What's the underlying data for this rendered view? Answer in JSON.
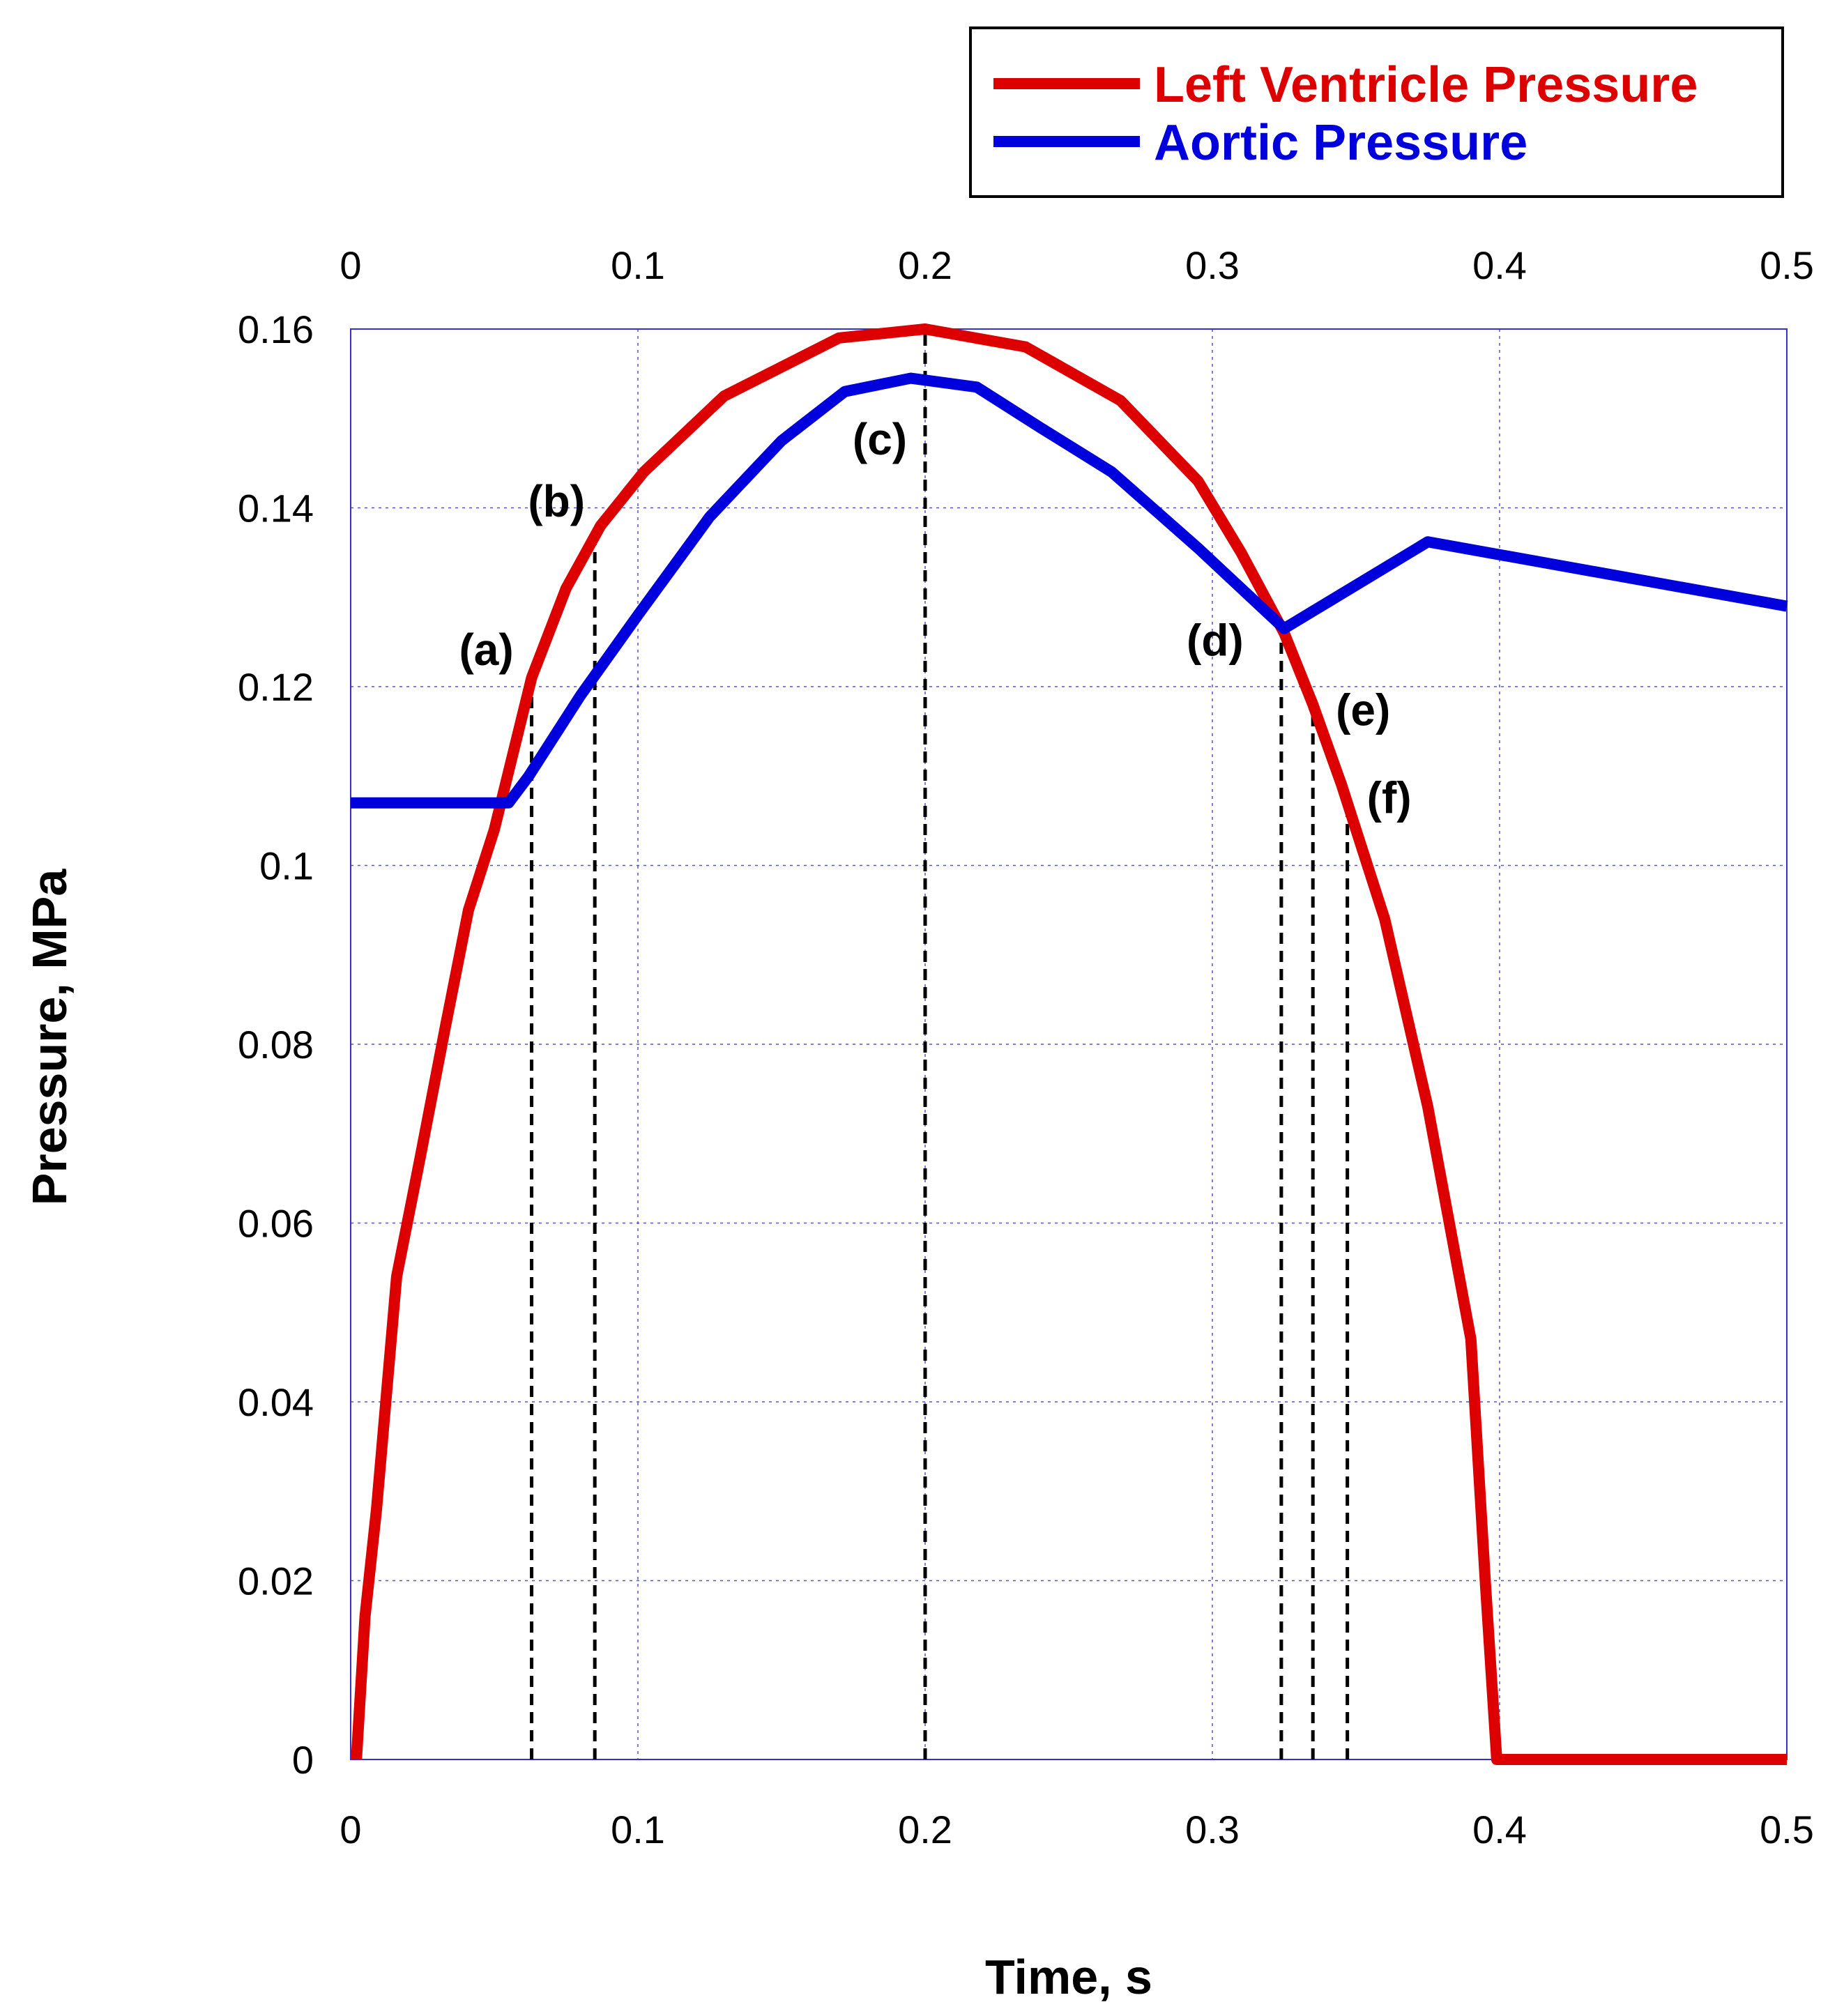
{
  "chart_data": {
    "type": "line",
    "xlabel": "Time, s",
    "ylabel": "Pressure, MPa",
    "xlim": [
      0,
      0.5
    ],
    "ylim": [
      0,
      0.16
    ],
    "x_ticks": [
      "0",
      "0.1",
      "0.2",
      "0.3",
      "0.4",
      "0.5"
    ],
    "y_ticks": [
      "0",
      "0.02",
      "0.04",
      "0.06",
      "0.08",
      "0.1",
      "0.12",
      "0.14",
      "0.16"
    ],
    "x_tick_values": [
      0,
      0.1,
      0.2,
      0.3,
      0.4,
      0.5
    ],
    "y_tick_values": [
      0,
      0.02,
      0.04,
      0.06,
      0.08,
      0.1,
      0.12,
      0.14,
      0.16
    ],
    "grid": true,
    "legend_position": "top-right",
    "series": [
      {
        "name": "Left Ventricle Pressure",
        "color": "#dd0000",
        "x": [
          0.002,
          0.005,
          0.009,
          0.016,
          0.024,
          0.033,
          0.041,
          0.05,
          0.063,
          0.075,
          0.087,
          0.102,
          0.13,
          0.17,
          0.2,
          0.235,
          0.268,
          0.295,
          0.31,
          0.325,
          0.335,
          0.345,
          0.36,
          0.375,
          0.39,
          0.395,
          0.399,
          0.5
        ],
        "y": [
          0.0,
          0.016,
          0.028,
          0.054,
          0.067,
          0.082,
          0.095,
          0.104,
          0.121,
          0.131,
          0.138,
          0.144,
          0.1525,
          0.159,
          0.16,
          0.158,
          0.152,
          0.143,
          0.135,
          0.126,
          0.118,
          0.109,
          0.094,
          0.073,
          0.047,
          0.02,
          0.0,
          0.0
        ]
      },
      {
        "name": "Aortic Pressure",
        "color": "#0000dd",
        "x": [
          0.0,
          0.055,
          0.062,
          0.08,
          0.1,
          0.125,
          0.15,
          0.172,
          0.195,
          0.218,
          0.24,
          0.265,
          0.295,
          0.325,
          0.375,
          0.5
        ],
        "y": [
          0.107,
          0.107,
          0.11,
          0.119,
          0.128,
          0.139,
          0.1475,
          0.153,
          0.1545,
          0.1535,
          0.149,
          0.144,
          0.1355,
          0.1265,
          0.1362,
          0.129
        ]
      }
    ],
    "annotations": [
      {
        "label": "(a)",
        "x": 0.063
      },
      {
        "label": "(b)",
        "x": 0.085
      },
      {
        "label": "(c)",
        "x": 0.2
      },
      {
        "label": "(d)",
        "x": 0.324
      },
      {
        "label": "(e)",
        "x": 0.335
      },
      {
        "label": "(f)",
        "x": 0.347
      }
    ]
  }
}
